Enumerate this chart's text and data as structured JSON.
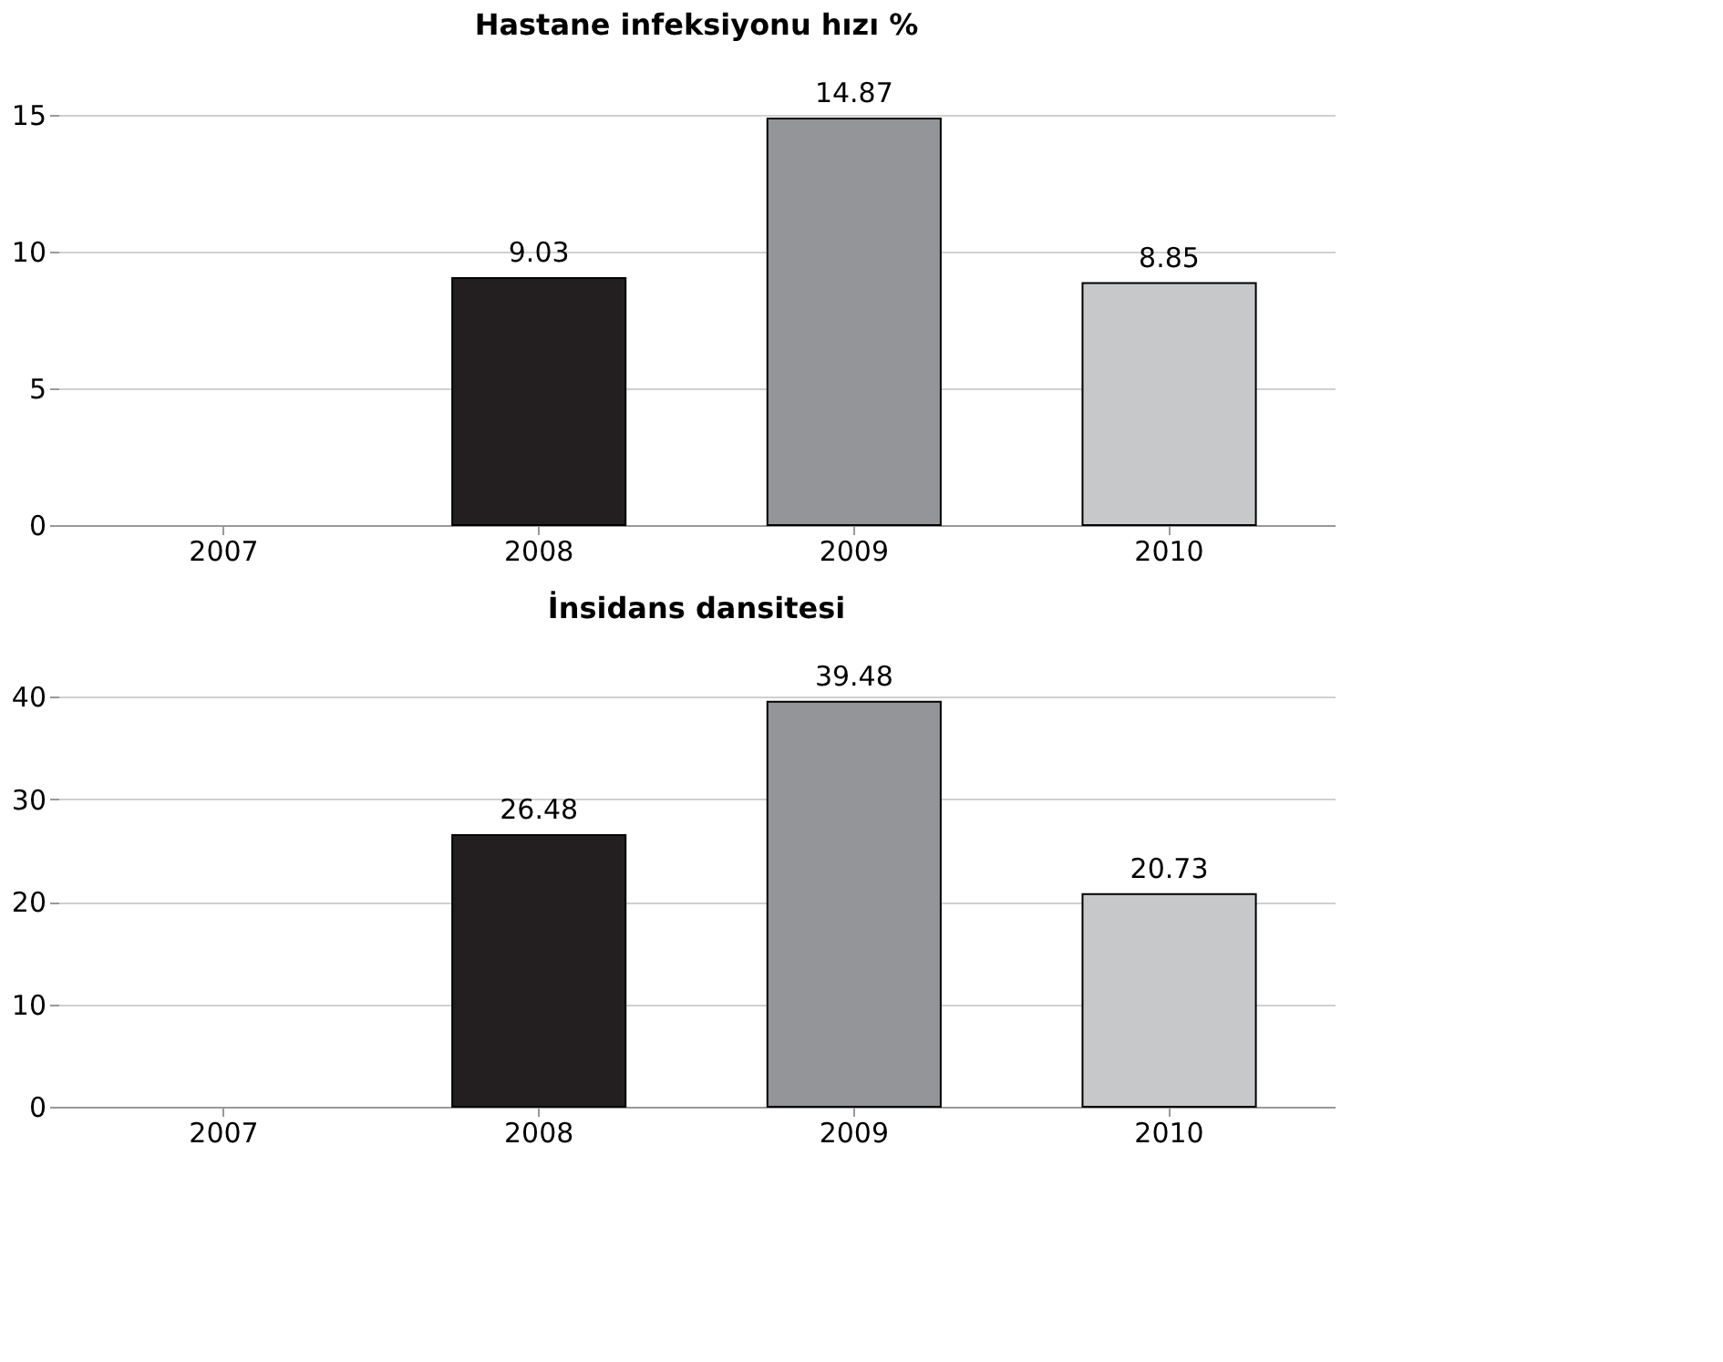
{
  "chart_data": [
    {
      "type": "bar",
      "title": "Hastane infeksiyonu hızı %",
      "categories": [
        "2007",
        "2008",
        "2009",
        "2010"
      ],
      "values": [
        null,
        9.03,
        14.87,
        8.85
      ],
      "colors": [
        "#231f20",
        "#231f20",
        "#939598",
        "#c7c8ca"
      ],
      "ylim": [
        0,
        15
      ],
      "yticks": [
        0,
        5,
        10,
        15
      ],
      "grid": "y",
      "data_labels": true
    },
    {
      "type": "bar",
      "title": "İnsidans dansitesi",
      "categories": [
        "2007",
        "2008",
        "2009",
        "2010"
      ],
      "values": [
        null,
        26.48,
        39.48,
        20.73
      ],
      "colors": [
        "#231f20",
        "#231f20",
        "#939598",
        "#c7c8ca"
      ],
      "ylim": [
        0,
        40
      ],
      "yticks": [
        0,
        10,
        20,
        30,
        40
      ],
      "grid": "y",
      "data_labels": true
    }
  ]
}
